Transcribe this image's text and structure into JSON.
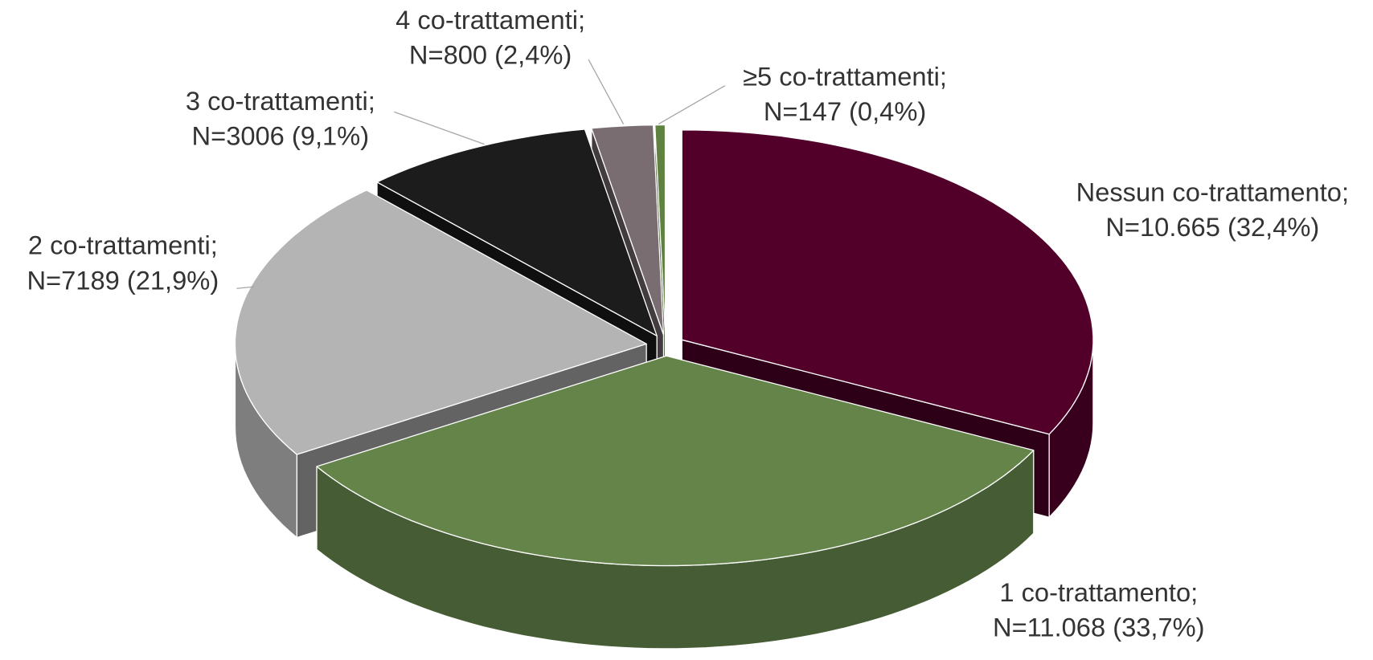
{
  "chart_data": {
    "type": "pie",
    "categories": [
      "Nessun co-trattamento;",
      "1 co-trattamento;",
      "2 co-trattamenti;",
      "3 co-trattamenti;",
      "4 co-trattamenti;",
      "≥5 co-trattamenti;"
    ],
    "values": [
      32.4,
      33.7,
      21.9,
      9.1,
      2.4,
      0.4
    ],
    "value_labels": [
      "N=10.665 (32,4%)",
      "N=11.068 (33,7%)",
      "N=7189 (21,9%)",
      "N=3006 (9,1%)",
      "N=800 (2,4%)",
      "N=147 (0,4%)"
    ],
    "colors": [
      "#52002a",
      "#64844a",
      "#b4b4b4",
      "#1c1c1c",
      "#7a6d72",
      "#5f8240"
    ]
  }
}
